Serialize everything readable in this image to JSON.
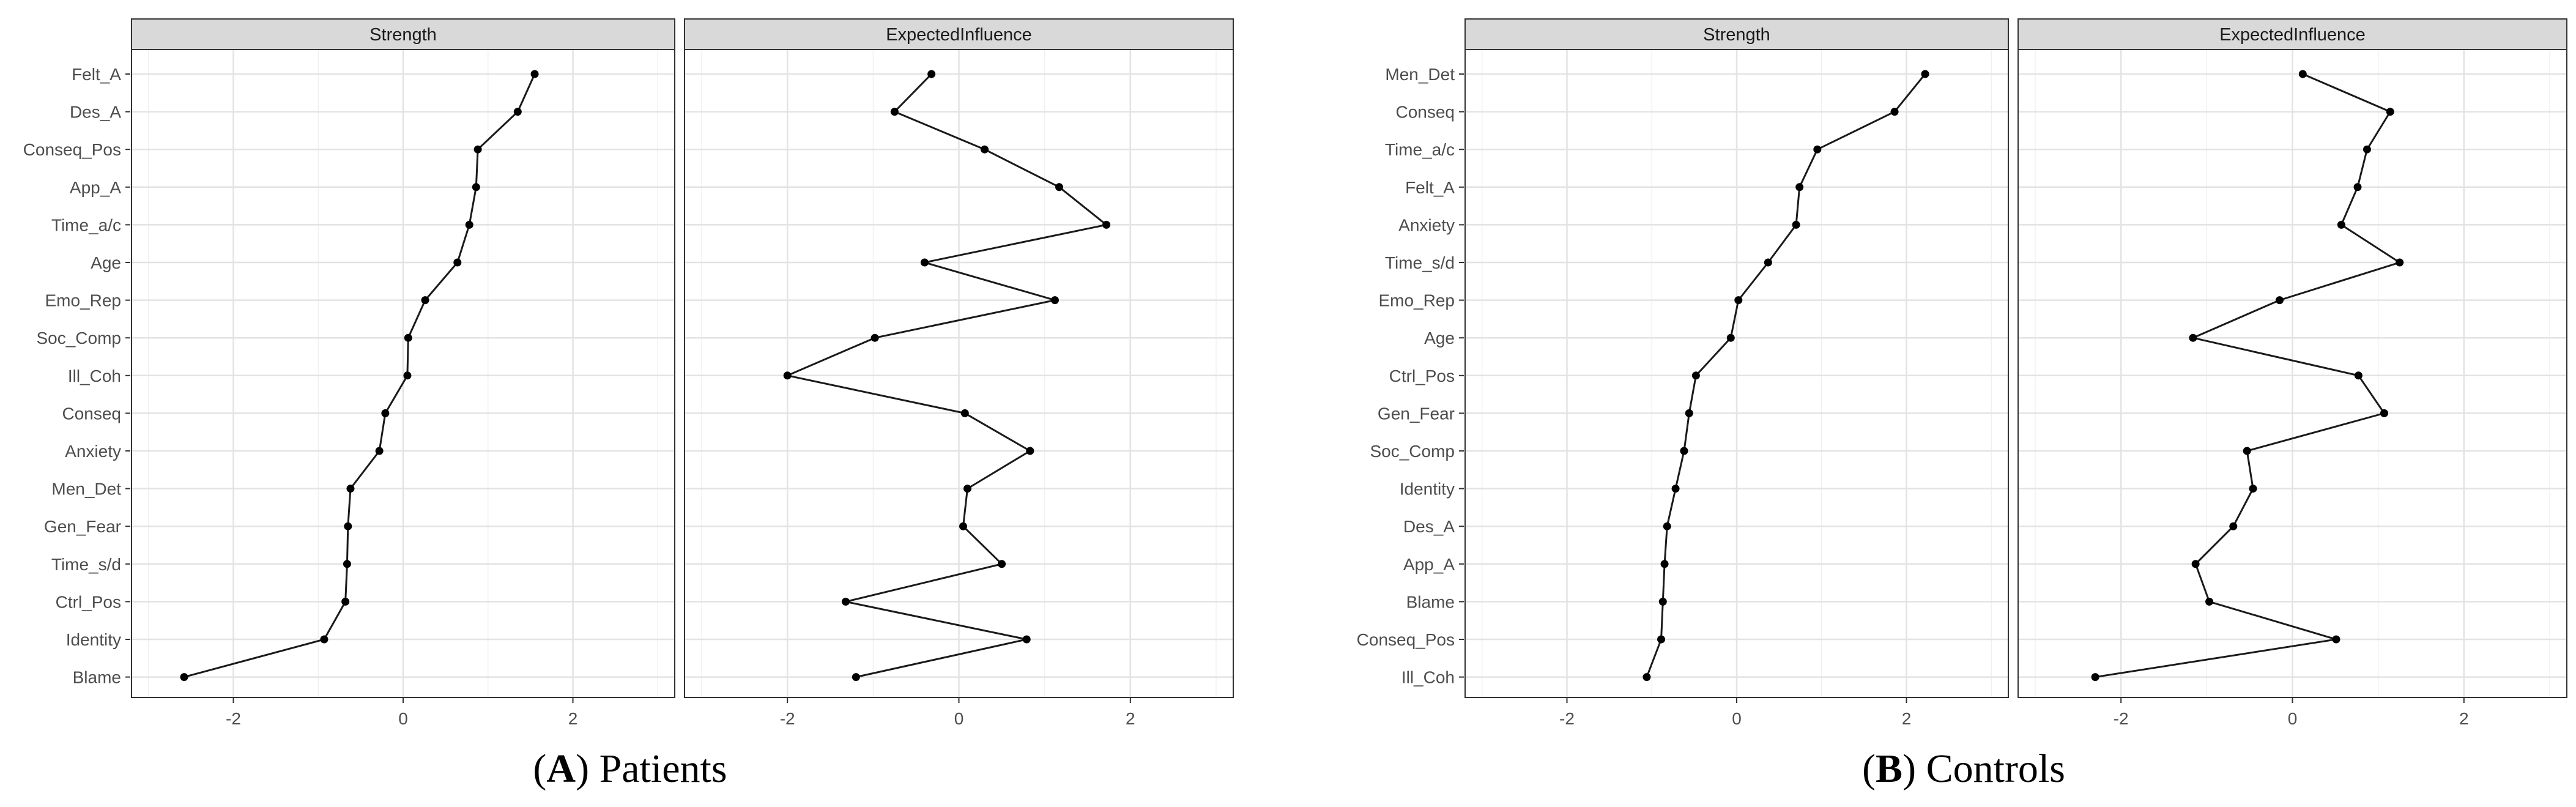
{
  "figure": {
    "panels": [
      {
        "letter": "A",
        "title": "Patients"
      },
      {
        "letter": "B",
        "title": "Controls"
      }
    ]
  },
  "chart_data": [
    {
      "type": "line",
      "title": "(A) Patients",
      "facets": [
        "Strength",
        "ExpectedInfluence"
      ],
      "categories": [
        "Felt_A",
        "Des_A",
        "Conseq_Pos",
        "App_A",
        "Time_a/c",
        "Age",
        "Emo_Rep",
        "Soc_Comp",
        "Ill_Coh",
        "Conseq",
        "Anxiety",
        "Men_Det",
        "Gen_Fear",
        "Time_s/d",
        "Ctrl_Pos",
        "Identity",
        "Blame"
      ],
      "series": [
        {
          "name": "Strength",
          "values": [
            1.55,
            1.35,
            0.88,
            0.86,
            0.78,
            0.64,
            0.26,
            0.06,
            0.05,
            -0.21,
            -0.28,
            -0.62,
            -0.65,
            -0.66,
            -0.68,
            -0.93,
            -2.58
          ]
        },
        {
          "name": "ExpectedInfluence",
          "values": [
            -0.32,
            -0.75,
            0.3,
            1.17,
            1.72,
            -0.4,
            1.12,
            -0.98,
            -2.0,
            0.07,
            0.83,
            0.1,
            0.05,
            0.5,
            -1.32,
            0.79,
            -1.2
          ]
        }
      ],
      "xlim": [
        -3.2,
        3.2
      ],
      "xticks": [
        "-2",
        "0",
        "2"
      ],
      "grid": true
    },
    {
      "type": "line",
      "title": "(B) Controls",
      "facets": [
        "Strength",
        "ExpectedInfluence"
      ],
      "categories": [
        "Men_Det",
        "Conseq",
        "Time_a/c",
        "Felt_A",
        "Anxiety",
        "Time_s/d",
        "Emo_Rep",
        "Age",
        "Ctrl_Pos",
        "Gen_Fear",
        "Soc_Comp",
        "Identity",
        "Des_A",
        "App_A",
        "Blame",
        "Conseq_Pos",
        "Ill_Coh"
      ],
      "series": [
        {
          "name": "Strength",
          "values": [
            2.22,
            1.86,
            0.95,
            0.74,
            0.7,
            0.37,
            0.02,
            -0.07,
            -0.48,
            -0.56,
            -0.62,
            -0.72,
            -0.82,
            -0.85,
            -0.87,
            -0.89,
            -1.06
          ]
        },
        {
          "name": "ExpectedInfluence",
          "values": [
            0.12,
            1.14,
            0.87,
            0.76,
            0.57,
            1.25,
            -0.15,
            -1.16,
            0.77,
            1.07,
            -0.53,
            -0.46,
            -0.69,
            -1.13,
            -0.97,
            0.51,
            -2.3
          ]
        }
      ],
      "xlim": [
        -3.2,
        3.2
      ],
      "xticks": [
        "-2",
        "0",
        "2"
      ],
      "grid": true
    }
  ]
}
